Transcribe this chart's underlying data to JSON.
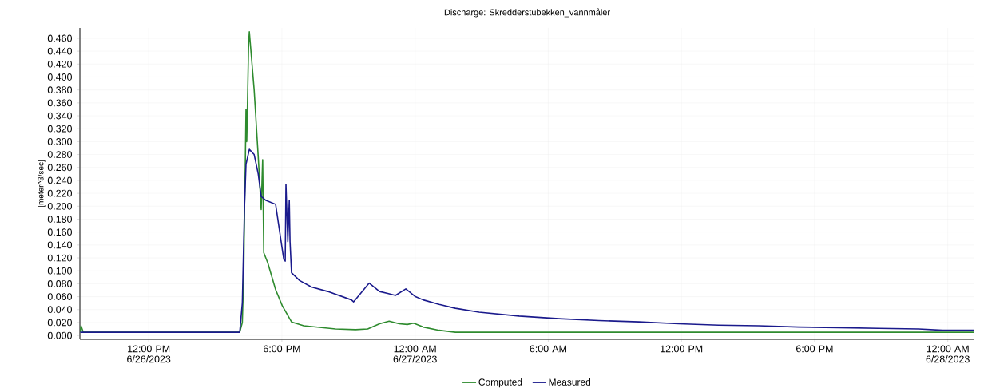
{
  "chart_data": {
    "type": "line",
    "title": "Discharge: Skredderstubekken_vannmåler",
    "ylabel": "[meter^3/sec]",
    "xlim": [
      "2023-06-26T08:54",
      "2023-06-28T01:12"
    ],
    "ylim": [
      -0.006,
      0.476
    ],
    "xticks": [
      {
        "value": "2023-06-26T12:00",
        "label": "12:00 PM 6/26/2023"
      },
      {
        "value": "2023-06-26T18:00",
        "label": "6:00 PM"
      },
      {
        "value": "2023-06-27T00:00",
        "label": "12:00 AM 6/27/2023"
      },
      {
        "value": "2023-06-27T06:00",
        "label": "6:00 AM"
      },
      {
        "value": "2023-06-27T12:00",
        "label": "12:00 PM"
      },
      {
        "value": "2023-06-27T18:00",
        "label": "6:00 PM"
      },
      {
        "value": "2023-06-28T00:00",
        "label": "12:00 AM 6/28/2023"
      }
    ],
    "yticks": [
      {
        "value": 0,
        "label": "0.000"
      },
      {
        "value": 0.02,
        "label": "0.020"
      },
      {
        "value": 0.04,
        "label": "0.040"
      },
      {
        "value": 0.06,
        "label": "0.060"
      },
      {
        "value": 0.08,
        "label": "0.080"
      },
      {
        "value": 0.1,
        "label": "0.100"
      },
      {
        "value": 0.12,
        "label": "0.120"
      },
      {
        "value": 0.14,
        "label": "0.140"
      },
      {
        "value": 0.16,
        "label": "0.160"
      },
      {
        "value": 0.18,
        "label": "0.180"
      },
      {
        "value": 0.2,
        "label": "0.200"
      },
      {
        "value": 0.22,
        "label": "0.220"
      },
      {
        "value": 0.24,
        "label": "0.240"
      },
      {
        "value": 0.26,
        "label": "0.260"
      },
      {
        "value": 0.28,
        "label": "0.280"
      },
      {
        "value": 0.3,
        "label": "0.300"
      },
      {
        "value": 0.32,
        "label": "0.320"
      },
      {
        "value": 0.34,
        "label": "0.340"
      },
      {
        "value": 0.36,
        "label": "0.360"
      },
      {
        "value": 0.38,
        "label": "0.380"
      },
      {
        "value": 0.4,
        "label": "0.400"
      },
      {
        "value": 0.42,
        "label": "0.420"
      },
      {
        "value": 0.44,
        "label": "0.440"
      },
      {
        "value": 0.46,
        "label": "0.460"
      }
    ],
    "grid": true,
    "legend": "bottom",
    "marker": "none",
    "line_style": "solid",
    "series": [
      {
        "name": "Computed",
        "color": "#2e8b2e",
        "x": [
          "2023-06-26T08:55",
          "2023-06-26T08:57",
          "2023-06-26T09:03",
          "2023-06-26T16:06",
          "2023-06-26T16:13",
          "2023-06-26T16:17",
          "2023-06-26T16:19",
          "2023-06-26T16:21",
          "2023-06-26T16:23",
          "2023-06-26T16:25",
          "2023-06-26T16:30",
          "2023-06-26T16:32",
          "2023-06-26T16:45",
          "2023-06-26T16:56",
          "2023-06-26T17:04",
          "2023-06-26T17:08",
          "2023-06-26T17:11",
          "2023-06-26T17:22",
          "2023-06-26T17:43",
          "2023-06-26T18:01",
          "2023-06-26T18:26",
          "2023-06-26T18:59",
          "2023-06-26T20:25",
          "2023-06-26T21:19",
          "2023-06-26T21:52",
          "2023-06-26T22:24",
          "2023-06-26T22:50",
          "2023-06-26T23:17",
          "2023-06-26T23:39",
          "2023-06-26T23:56",
          "2023-06-27T00:22",
          "2023-06-27T01:05",
          "2023-06-27T01:49",
          "2023-06-27T06:29",
          "2023-06-27T13:41",
          "2023-06-27T20:53",
          "2023-06-28T01:11"
        ],
        "values": [
          0.005,
          0.015,
          0.005,
          0.005,
          0.02,
          0.1,
          0.2,
          0.26,
          0.35,
          0.3,
          0.45,
          0.47,
          0.38,
          0.277,
          0.195,
          0.272,
          0.128,
          0.112,
          0.071,
          0.046,
          0.021,
          0.015,
          0.01,
          0.009,
          0.01,
          0.018,
          0.022,
          0.018,
          0.017,
          0.019,
          0.013,
          0.008,
          0.005,
          0.005,
          0.005,
          0.005,
          0.005
        ]
      },
      {
        "name": "Measured",
        "color": "#1a1a8c",
        "x": [
          "2023-06-26T08:55",
          "2023-06-26T16:06",
          "2023-06-26T16:13",
          "2023-06-26T16:19",
          "2023-06-26T16:23",
          "2023-06-26T16:32",
          "2023-06-26T16:45",
          "2023-06-26T16:56",
          "2023-06-26T17:04",
          "2023-06-26T17:17",
          "2023-06-26T17:43",
          "2023-06-26T18:05",
          "2023-06-26T18:09",
          "2023-06-26T18:11",
          "2023-06-26T18:16",
          "2023-06-26T18:20",
          "2023-06-26T18:22",
          "2023-06-26T18:26",
          "2023-06-26T18:48",
          "2023-06-26T19:20",
          "2023-06-26T20:04",
          "2023-06-26T21:08",
          "2023-06-26T21:14",
          "2023-06-26T21:56",
          "2023-06-26T22:24",
          "2023-06-26T22:46",
          "2023-06-26T23:07",
          "2023-06-26T23:35",
          "2023-06-27T00:01",
          "2023-06-27T00:22",
          "2023-06-27T01:05",
          "2023-06-27T01:49",
          "2023-06-27T02:53",
          "2023-06-27T04:41",
          "2023-06-27T06:29",
          "2023-06-27T08:17",
          "2023-06-27T10:05",
          "2023-06-27T11:53",
          "2023-06-27T13:41",
          "2023-06-27T15:29",
          "2023-06-27T17:17",
          "2023-06-27T19:05",
          "2023-06-27T20:53",
          "2023-06-27T22:41",
          "2023-06-27T23:46",
          "2023-06-28T01:11"
        ],
        "values": [
          0.005,
          0.005,
          0.05,
          0.2,
          0.265,
          0.288,
          0.28,
          0.25,
          0.215,
          0.209,
          0.203,
          0.118,
          0.115,
          0.234,
          0.145,
          0.209,
          0.145,
          0.097,
          0.085,
          0.075,
          0.068,
          0.055,
          0.052,
          0.081,
          0.068,
          0.065,
          0.062,
          0.072,
          0.06,
          0.055,
          0.048,
          0.042,
          0.036,
          0.03,
          0.026,
          0.023,
          0.021,
          0.018,
          0.016,
          0.015,
          0.013,
          0.012,
          0.011,
          0.01,
          0.008,
          0.008
        ]
      }
    ]
  }
}
